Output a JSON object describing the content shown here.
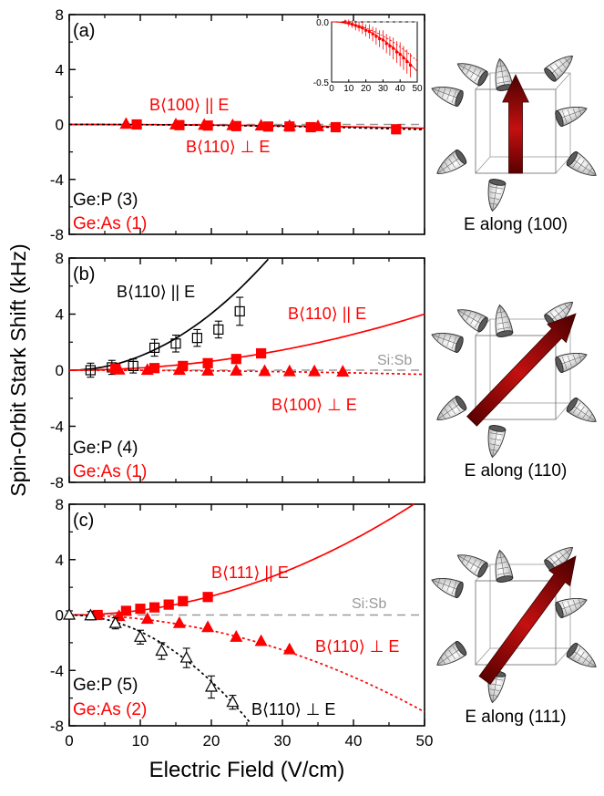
{
  "figure": {
    "ylabel": "Spin-Orbit Stark Shift (kHz)",
    "xlabel": "Electric Field (V/cm)",
    "x_ticks": [
      0,
      10,
      20,
      30,
      40,
      50
    ],
    "y_ticks": [
      -8,
      -4,
      0,
      4,
      8
    ],
    "colors": {
      "ge_as": "#ff0000",
      "ge_p": "#000000",
      "si_sb": "#999999",
      "arrow": "#8b0000"
    }
  },
  "chart_data": [
    {
      "type": "scatter",
      "panel": "(a)",
      "xlim": [
        0,
        50
      ],
      "ylim": [
        -8,
        8
      ],
      "legend": [
        {
          "text": "Ge:P (3)",
          "color": "#000000"
        },
        {
          "text": "Ge:As (1)",
          "color": "#ff0000"
        }
      ],
      "annotations": [
        "B⟨100⟩ || E",
        "B⟨110⟩ ⊥ E"
      ],
      "series": [
        {
          "label": "B⟨100⟩ || E",
          "marker": "triangle-filled",
          "color": "#ff0000",
          "x": [
            8,
            15,
            19,
            23,
            27,
            31,
            35
          ],
          "y": [
            0.02,
            -0.02,
            -0.05,
            -0.08,
            -0.1,
            -0.13,
            -0.15
          ]
        },
        {
          "label": "B⟨110⟩ ⊥ E",
          "marker": "square-filled",
          "color": "#ff0000",
          "x": [
            9.5,
            15.5,
            19.5,
            23.5,
            28,
            31,
            34,
            37.5,
            46
          ],
          "y": [
            0.0,
            -0.05,
            -0.08,
            -0.12,
            -0.15,
            -0.15,
            -0.2,
            -0.2,
            -0.35
          ]
        }
      ],
      "fits": [
        {
          "style": "solid",
          "color": "#ff0000",
          "coef": -0.00011
        },
        {
          "style": "dotted",
          "color": "#000000",
          "coef": -0.00015
        }
      ],
      "reference": {
        "style": "dashed",
        "y": 0,
        "color": "#999999"
      },
      "inset": {
        "xlim": [
          0,
          50
        ],
        "ylim": [
          -0.5,
          0.0
        ],
        "x_ticks": [
          0,
          10,
          20,
          30,
          40,
          50
        ],
        "y_ticks": [
          "0.0",
          "-0.5"
        ],
        "x": [
          8,
          10,
          12,
          14,
          16,
          18,
          20,
          22,
          24,
          26,
          28,
          30,
          32,
          34,
          36,
          38,
          40,
          42,
          44,
          46
        ],
        "y": [
          0.0,
          -0.01,
          -0.02,
          -0.03,
          -0.04,
          -0.05,
          -0.07,
          -0.08,
          -0.1,
          -0.12,
          -0.14,
          -0.15,
          -0.18,
          -0.2,
          -0.22,
          -0.25,
          -0.27,
          -0.3,
          -0.33,
          -0.36
        ],
        "err": [
          0.02,
          0.03,
          0.03,
          0.04,
          0.04,
          0.05,
          0.05,
          0.06,
          0.06,
          0.07,
          0.07,
          0.08,
          0.08,
          0.08,
          0.09,
          0.09,
          0.1,
          0.1,
          0.1,
          0.1
        ]
      }
    },
    {
      "type": "scatter",
      "panel": "(b)",
      "xlim": [
        0,
        50
      ],
      "ylim": [
        -8,
        8
      ],
      "legend": [
        {
          "text": "Ge:P (4)",
          "color": "#000000"
        },
        {
          "text": "Ge:As (1)",
          "color": "#ff0000"
        }
      ],
      "annotations": [
        "B⟨110⟩ || E",
        "B⟨110⟩ || E",
        "B⟨100⟩ ⊥ E",
        "Si:Sb"
      ],
      "series": [
        {
          "label": "B⟨110⟩ || E",
          "dopant": "Ge:P",
          "marker": "square-open",
          "color": "#000000",
          "x": [
            3,
            6,
            9,
            12,
            15,
            18,
            21,
            24
          ],
          "y": [
            0.0,
            0.2,
            0.3,
            1.6,
            1.9,
            2.3,
            2.9,
            4.2
          ],
          "err": [
            0.5,
            0.5,
            0.5,
            0.6,
            0.6,
            0.6,
            0.6,
            1.0
          ]
        },
        {
          "label": "B⟨110⟩ || E",
          "dopant": "Ge:As",
          "marker": "square-filled",
          "color": "#ff0000",
          "x": [
            6.5,
            12,
            16,
            19.5,
            23.5,
            27
          ],
          "y": [
            0.1,
            0.15,
            0.3,
            0.5,
            0.8,
            1.2
          ]
        },
        {
          "label": "B⟨100⟩ ⊥ E",
          "dopant": "Ge:As",
          "marker": "triangle-filled",
          "color": "#ff0000",
          "x": [
            7,
            11,
            15.5,
            19.5,
            23.5,
            27.5,
            31,
            34.5,
            38.5
          ],
          "y": [
            0.02,
            0.0,
            0.0,
            -0.05,
            -0.05,
            -0.08,
            -0.1,
            -0.1,
            -0.12
          ]
        }
      ],
      "fits": [
        {
          "style": "solid",
          "color": "#000000",
          "coef": 0.0101
        },
        {
          "style": "solid",
          "color": "#ff0000",
          "coef": 0.0016
        },
        {
          "style": "dotted",
          "color": "#ff0000",
          "coef": -0.00012
        }
      ],
      "reference": {
        "label": "Si:Sb",
        "style": "dashed",
        "y": 0,
        "color": "#999999"
      }
    },
    {
      "type": "scatter",
      "panel": "(c)",
      "xlim": [
        0,
        50
      ],
      "ylim": [
        -8,
        8
      ],
      "legend": [
        {
          "text": "Ge:P (5)",
          "color": "#000000"
        },
        {
          "text": "Ge:As (2)",
          "color": "#ff0000"
        }
      ],
      "annotations": [
        "B⟨111⟩ || E",
        "B⟨110⟩ ⊥ E",
        "B⟨110⟩ ⊥ E",
        "Si:Sb"
      ],
      "series": [
        {
          "label": "B⟨111⟩ || E",
          "dopant": "Ge:As",
          "marker": "square-filled",
          "color": "#ff0000",
          "x": [
            4,
            8,
            10,
            12,
            14,
            16,
            19.5
          ],
          "y": [
            0.0,
            0.3,
            0.45,
            0.55,
            0.75,
            1.0,
            1.3
          ]
        },
        {
          "label": "B⟨110⟩ ⊥ E",
          "dopant": "Ge:As",
          "marker": "triangle-filled",
          "color": "#ff0000",
          "x": [
            7,
            11,
            15.5,
            19.5,
            23.5,
            27,
            31
          ],
          "y": [
            -0.1,
            -0.3,
            -0.6,
            -0.9,
            -1.6,
            -1.9,
            -2.5
          ]
        },
        {
          "label": "B⟨110⟩ ⊥ E",
          "dopant": "Ge:P",
          "marker": "triangle-open",
          "color": "#000000",
          "x": [
            0,
            3,
            6.5,
            10,
            13,
            16.5,
            20,
            23
          ],
          "y": [
            0.0,
            -0.05,
            -0.6,
            -1.6,
            -2.6,
            -3.1,
            -5.2,
            -6.3
          ],
          "err": [
            0.3,
            0.3,
            0.4,
            0.5,
            0.6,
            0.7,
            0.8,
            0.5
          ]
        }
      ],
      "fits": [
        {
          "style": "solid",
          "color": "#ff0000",
          "coef": 0.0034
        },
        {
          "style": "dotted",
          "color": "#ff0000",
          "coef": -0.0028
        },
        {
          "style": "dotted",
          "color": "#000000",
          "coef": -0.012
        }
      ],
      "reference": {
        "label": "Si:Sb",
        "style": "dashed",
        "y": 0,
        "color": "#999999"
      }
    }
  ],
  "cube_captions": [
    "E along (100)",
    "E along (110)",
    "E along (111)"
  ]
}
